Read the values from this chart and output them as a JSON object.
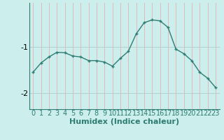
{
  "x": [
    0,
    1,
    2,
    3,
    4,
    5,
    6,
    7,
    8,
    9,
    10,
    11,
    12,
    13,
    14,
    15,
    16,
    17,
    18,
    19,
    20,
    21,
    22,
    23
  ],
  "y": [
    -1.55,
    -1.35,
    -1.22,
    -1.12,
    -1.13,
    -1.2,
    -1.22,
    -1.3,
    -1.3,
    -1.33,
    -1.42,
    -1.25,
    -1.1,
    -0.72,
    -0.48,
    -0.42,
    -0.44,
    -0.58,
    -1.05,
    -1.15,
    -1.3,
    -1.55,
    -1.68,
    -1.88
  ],
  "line_color": "#2e7d72",
  "marker": "+",
  "marker_size": 3,
  "marker_linewidth": 1.0,
  "background_color": "#cceeed",
  "grid_color_vertical": "#e8b0b0",
  "grid_color_horizontal": "#b0cccc",
  "xlabel": "Humidex (Indice chaleur)",
  "yticks": [
    -2,
    -1
  ],
  "ylim": [
    -2.35,
    -0.05
  ],
  "xlim": [
    -0.5,
    23.5
  ],
  "xlabel_fontsize": 8,
  "tick_fontsize": 7,
  "linewidth": 1.0
}
